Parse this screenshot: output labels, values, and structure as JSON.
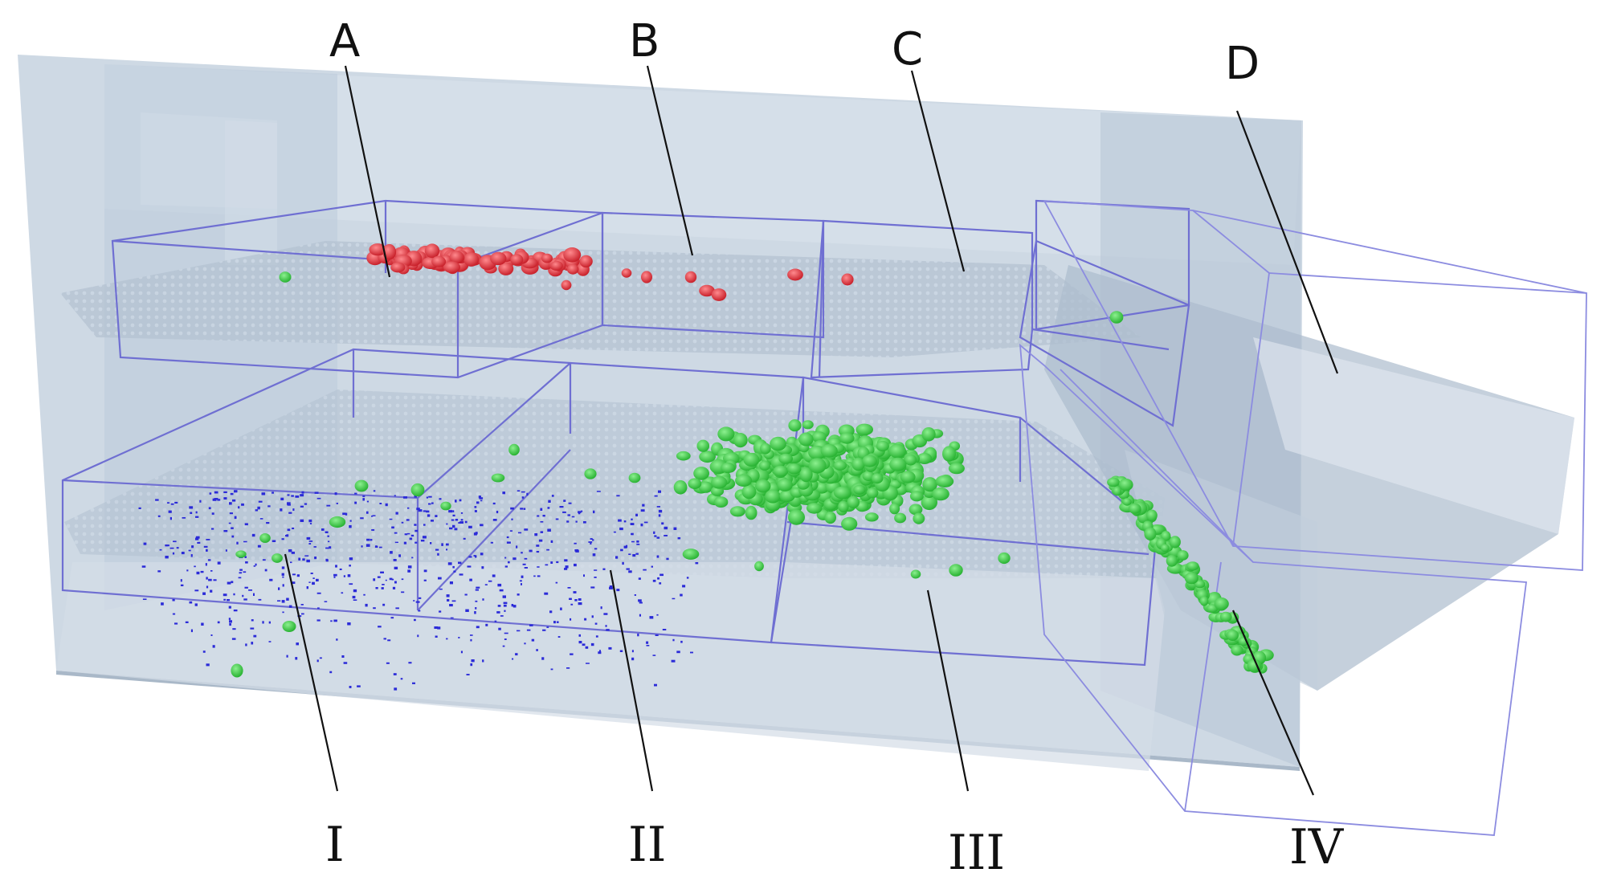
{
  "figure": {
    "top_labels": [
      "A",
      "B",
      "C",
      "D"
    ],
    "bottom_labels": [
      "I",
      "II",
      "III",
      "IV"
    ]
  },
  "colors": {
    "background": "#ffffff",
    "room_fill": "#c7d3e0",
    "room_edge": "#aebdcc",
    "box_edge": "#6f6fd2",
    "red_particles": "#e0343c",
    "green_particles": "#3fd64a",
    "blue_particles": "#2b2bd8",
    "label_text": "#111111"
  },
  "particle_groups": [
    "red-particles",
    "green-particles",
    "blue-particles"
  ]
}
